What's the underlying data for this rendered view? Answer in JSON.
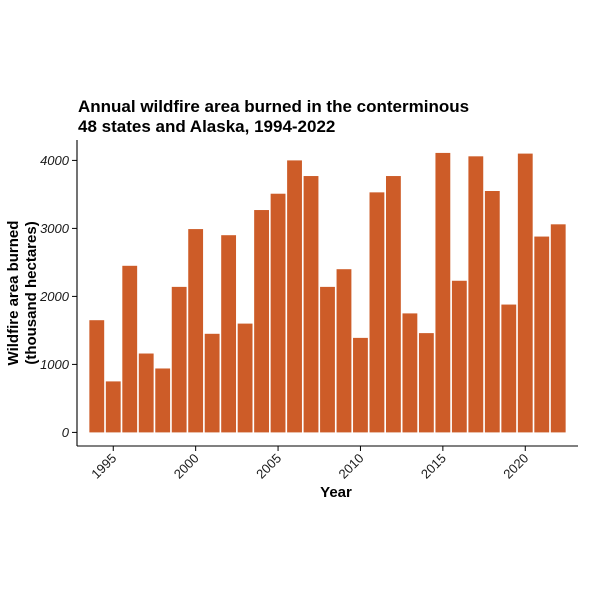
{
  "chart_data": {
    "type": "bar",
    "title": [
      "Annual wildfire area burned in the conterminous",
      "48 states and Alaska, 1994-2022"
    ],
    "xlabel": "Year",
    "ylabel": [
      "Wildfire area burned",
      "(thousand hectares)"
    ],
    "x": [
      1994,
      1995,
      1996,
      1997,
      1998,
      1999,
      2000,
      2001,
      2002,
      2003,
      2004,
      2005,
      2006,
      2007,
      2008,
      2009,
      2010,
      2011,
      2012,
      2013,
      2014,
      2015,
      2016,
      2017,
      2018,
      2019,
      2020,
      2021,
      2022
    ],
    "values": [
      1650,
      750,
      2450,
      1160,
      940,
      2140,
      2990,
      1450,
      2900,
      1600,
      3270,
      3510,
      4000,
      3770,
      2140,
      2400,
      1390,
      3530,
      3770,
      1750,
      1460,
      4110,
      2230,
      4060,
      3550,
      1880,
      4100,
      2880,
      3060
    ],
    "xticks": [
      1995,
      2000,
      2005,
      2010,
      2015,
      2020
    ],
    "yticks": [
      0,
      1000,
      2000,
      3000,
      4000
    ],
    "ylim": [
      -200,
      4300
    ],
    "xlim": [
      1992.8,
      2023.2
    ],
    "bar_color": "#CD5C28",
    "grid": false
  }
}
